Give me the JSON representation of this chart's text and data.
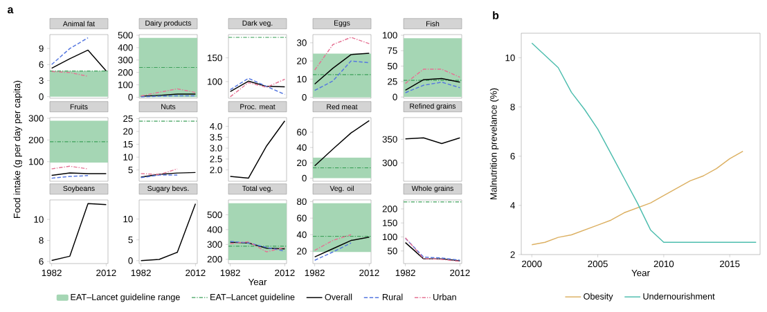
{
  "chart_data": [
    {
      "type": "line",
      "title": "Animal fat",
      "annotations": [
        "a"
      ],
      "categories": [
        null,
        null,
        null,
        null
      ],
      "ylim": [
        -0.3,
        11.6
      ],
      "yticks": [
        0,
        3,
        6,
        9
      ],
      "tick_labels": "y",
      "bands": [
        {
          "axis": "y",
          "from": 0,
          "to": 4.8,
          "color": "#a5d6b4"
        }
      ],
      "ref_lines": [
        {
          "axis": "y",
          "value": 4.8,
          "color": "#3ca05a",
          "line_style": "dashdot"
        }
      ],
      "series": [
        {
          "color": "#000000",
          "line_style": "solid",
          "values": [
            5.3,
            7.1,
            8.7,
            4.8
          ]
        },
        {
          "color": "#5577e0",
          "line_style": "dashed",
          "values": [
            6.0,
            9.0,
            11.0,
            null
          ]
        },
        {
          "color": "#e57394",
          "line_style": "dashdot",
          "values": [
            4.7,
            4.5,
            3.8,
            null
          ]
        }
      ]
    },
    {
      "type": "line",
      "title": "Dairy products",
      "categories": [
        null,
        null,
        null,
        null
      ],
      "ylim": [
        -8,
        505
      ],
      "yticks": [
        0,
        100,
        200,
        300,
        400,
        500
      ],
      "tick_labels": "y",
      "bands": [
        {
          "axis": "y",
          "from": 0,
          "to": 478,
          "color": "#a5d6b4"
        }
      ],
      "ref_lines": [
        {
          "axis": "y",
          "value": 240,
          "color": "#3ca05a",
          "line_style": "dashdot"
        }
      ],
      "series": [
        {
          "color": "#000000",
          "line_style": "solid",
          "values": [
            8,
            15,
            25,
            25
          ]
        },
        {
          "color": "#5577e0",
          "line_style": "dashed",
          "values": [
            3,
            8,
            12,
            12
          ]
        },
        {
          "color": "#e57394",
          "line_style": "dashdot",
          "values": [
            10,
            40,
            68,
            38
          ]
        }
      ]
    },
    {
      "type": "line",
      "title": "Dark veg.",
      "categories": [
        null,
        null,
        null,
        null
      ],
      "ylim": [
        65,
        199
      ],
      "yticks": [
        100,
        150
      ],
      "tick_labels": "y",
      "ref_lines": [
        {
          "axis": "y",
          "value": 193,
          "color": "#3ca05a",
          "line_style": "dashdot"
        }
      ],
      "series": [
        {
          "color": "#000000",
          "line_style": "solid",
          "values": [
            79,
            101,
            90,
            89
          ]
        },
        {
          "color": "#5577e0",
          "line_style": "dashed",
          "values": [
            83,
            107,
            90,
            73
          ]
        },
        {
          "color": "#e57394",
          "line_style": "dashdot",
          "values": [
            68,
            98,
            88,
            105
          ]
        }
      ]
    },
    {
      "type": "line",
      "title": "Eggs",
      "categories": [
        null,
        null,
        null,
        null
      ],
      "ylim": [
        -0.5,
        34.5
      ],
      "yticks": [
        0,
        10,
        20,
        30
      ],
      "tick_labels": "y",
      "bands": [
        {
          "axis": "y",
          "from": 0,
          "to": 24,
          "color": "#a5d6b4"
        }
      ],
      "ref_lines": [
        {
          "axis": "y",
          "value": 12.5,
          "color": "#3ca05a",
          "line_style": "dashdot"
        }
      ],
      "series": [
        {
          "color": "#000000",
          "line_style": "solid",
          "values": [
            7.3,
            16,
            23.5,
            24.2
          ]
        },
        {
          "color": "#5577e0",
          "line_style": "dashed",
          "values": [
            3.8,
            9,
            20,
            19
          ]
        },
        {
          "color": "#e57394",
          "line_style": "dashdot",
          "values": [
            15,
            29,
            33,
            29.5
          ]
        }
      ]
    },
    {
      "type": "line",
      "title": "Fish",
      "categories": [
        null,
        null,
        null,
        null
      ],
      "ylim": [
        -2,
        101
      ],
      "yticks": [
        0,
        25,
        50,
        75,
        100
      ],
      "tick_labels": "y",
      "bands": [
        {
          "axis": "y",
          "from": 0,
          "to": 95,
          "color": "#a5d6b4"
        }
      ],
      "ref_lines": [
        {
          "axis": "y",
          "value": 27,
          "color": "#3ca05a",
          "line_style": "dashdot"
        }
      ],
      "series": [
        {
          "color": "#000000",
          "line_style": "solid",
          "values": [
            11,
            28,
            30,
            24
          ]
        },
        {
          "color": "#5577e0",
          "line_style": "dashed",
          "values": [
            7,
            19,
            24,
            15
          ]
        },
        {
          "color": "#e57394",
          "line_style": "dashdot",
          "values": [
            22,
            45,
            45,
            32
          ]
        }
      ]
    },
    {
      "type": "line",
      "title": "Fruits",
      "ylabel": "Food intake (g per day per capita)",
      "categories": [
        null,
        null,
        null,
        null
      ],
      "ylim": [
        10,
        303
      ],
      "yticks": [
        100,
        200,
        300
      ],
      "tick_labels": "y",
      "bands": [
        {
          "axis": "y",
          "from": 96,
          "to": 289,
          "color": "#a5d6b4"
        }
      ],
      "ref_lines": [
        {
          "axis": "y",
          "value": 192,
          "color": "#3ca05a",
          "line_style": "dashdot"
        }
      ],
      "series": [
        {
          "color": "#000000",
          "line_style": "solid",
          "values": [
            37,
            48,
            45,
            45
          ]
        },
        {
          "color": "#5577e0",
          "line_style": "dashed",
          "values": [
            24,
            32,
            36,
            null
          ]
        },
        {
          "color": "#e57394",
          "line_style": "dashdot",
          "values": [
            67,
            79,
            67,
            null
          ]
        }
      ]
    },
    {
      "type": "line",
      "title": "Nuts",
      "categories": [
        null,
        null,
        null,
        null
      ],
      "ylim": [
        0.6,
        25.4
      ],
      "yticks": [
        5,
        10,
        15,
        20,
        25
      ],
      "tick_labels": "y",
      "ref_lines": [
        {
          "axis": "y",
          "value": 24,
          "color": "#3ca05a",
          "line_style": "dashdot"
        }
      ],
      "series": [
        {
          "color": "#000000",
          "line_style": "solid",
          "values": [
            2.2,
            3.3,
            3.8,
            4.0
          ]
        },
        {
          "color": "#5577e0",
          "line_style": "dashed",
          "values": [
            2.0,
            3.0,
            3.0,
            null
          ]
        },
        {
          "color": "#e57394",
          "line_style": "dashdot",
          "values": [
            3.6,
            3.2,
            5.4,
            null
          ]
        }
      ]
    },
    {
      "type": "line",
      "title": "Proc. meat",
      "categories": [
        null,
        null,
        null,
        null
      ],
      "ylim": [
        1.48,
        4.4
      ],
      "yticks": [
        {
          "value": 2,
          "label": "2.0"
        },
        2.5,
        {
          "value": 3,
          "label": "3.0"
        },
        3.5,
        {
          "value": 4,
          "label": "4.0"
        }
      ],
      "tick_labels": "y",
      "series": [
        {
          "color": "#000000",
          "line_style": "solid",
          "values": [
            1.7,
            1.62,
            3.1,
            4.25
          ]
        }
      ]
    },
    {
      "type": "line",
      "title": "Red meat",
      "categories": [
        null,
        null,
        null,
        null
      ],
      "ylim": [
        -4,
        79
      ],
      "yticks": [
        0,
        20,
        40,
        60
      ],
      "tick_labels": "y",
      "bands": [
        {
          "axis": "y",
          "from": 0,
          "to": 27,
          "color": "#a5d6b4"
        }
      ],
      "ref_lines": [
        {
          "axis": "y",
          "value": 13.5,
          "color": "#3ca05a",
          "line_style": "dashdot"
        }
      ],
      "series": [
        {
          "color": "#000000",
          "line_style": "solid",
          "values": [
            16,
            38,
            59,
            75
          ]
        }
      ]
    },
    {
      "type": "line",
      "title": "Refined grains",
      "categories": [
        null,
        null,
        null,
        null
      ],
      "ylim": [
        261,
        396
      ],
      "yticks": [
        300,
        350
      ],
      "tick_labels": "y",
      "series": [
        {
          "color": "#000000",
          "line_style": "solid",
          "values": [
            351,
            353,
            341,
            353
          ]
        }
      ]
    },
    {
      "type": "line",
      "title": "Soybeans",
      "x": [
        1982,
        1992,
        2002,
        2012
      ],
      "xlim": [
        1981,
        2013
      ],
      "ylim": [
        5.8,
        11.85
      ],
      "yticks": [
        6,
        8,
        10
      ],
      "xticks": [
        1982,
        2012
      ],
      "series": [
        {
          "color": "#000000",
          "line_style": "solid",
          "values": [
            6.1,
            6.5,
            11.5,
            11.4
          ]
        }
      ]
    },
    {
      "type": "line",
      "title": "Sugary bevs.",
      "x": [
        1982,
        1992,
        2002,
        2012
      ],
      "xlim": [
        1981,
        2013
      ],
      "ylim": [
        -0.7,
        14.6
      ],
      "yticks": [
        0,
        5,
        10
      ],
      "xticks": [
        1982,
        2012
      ],
      "series": [
        {
          "color": "#000000",
          "line_style": "solid",
          "values": [
            0,
            0.3,
            2.0,
            13.7
          ]
        }
      ]
    },
    {
      "type": "line",
      "title": "Total veg.",
      "xlabel": "Year",
      "legend": "bottom",
      "x": [
        1982,
        1992,
        2002,
        2012
      ],
      "xlim": [
        1981,
        2013
      ],
      "ylim": [
        171,
        600
      ],
      "yticks": [
        200,
        300,
        400,
        500
      ],
      "xticks": [
        1982,
        2012
      ],
      "bands": [
        {
          "axis": "y",
          "from": 194,
          "to": 578,
          "color": "#a5d6b4",
          "label": "EAT–Lancet guideline range"
        }
      ],
      "ref_lines": [
        {
          "axis": "y",
          "value": 288,
          "color": "#3ca05a",
          "line_style": "dashdot",
          "label": "EAT–Lancet guideline"
        }
      ],
      "series": [
        {
          "name": "Overall",
          "color": "#000000",
          "line_style": "solid",
          "values": [
            315,
            310,
            275,
            270
          ]
        },
        {
          "name": "Rural",
          "color": "#5577e0",
          "line_style": "dashed",
          "values": [
            320,
            310,
            280,
            255
          ]
        },
        {
          "name": "Urban",
          "color": "#e57394",
          "line_style": "dashdot",
          "values": [
            305,
            318,
            250,
            280
          ]
        }
      ]
    },
    {
      "type": "line",
      "title": "Veg. oil",
      "x": [
        1982,
        1992,
        2002,
        2012
      ],
      "xlim": [
        1981,
        2013
      ],
      "ylim": [
        5,
        82
      ],
      "yticks": [
        20,
        40,
        60,
        80
      ],
      "xticks": [
        1982,
        2012
      ],
      "bands": [
        {
          "axis": "y",
          "from": 19,
          "to": 78,
          "color": "#a5d6b4"
        }
      ],
      "ref_lines": [
        {
          "axis": "y",
          "value": 38,
          "color": "#3ca05a",
          "line_style": "dashdot"
        }
      ],
      "series": [
        {
          "color": "#000000",
          "line_style": "solid",
          "values": [
            13,
            23,
            33,
            37
          ]
        },
        {
          "color": "#5577e0",
          "line_style": "dashed",
          "x": [
            1982,
            1992,
            2002
          ],
          "values": [
            9,
            19,
            30
          ]
        },
        {
          "color": "#e57394",
          "line_style": "dashdot",
          "x": [
            1982,
            1992,
            2002
          ],
          "values": [
            21,
            33,
            40
          ]
        }
      ]
    },
    {
      "type": "line",
      "title": "Whole grains",
      "x": [
        1982,
        1992,
        2002,
        2012
      ],
      "xlim": [
        1981,
        2013
      ],
      "ylim": [
        5,
        232
      ],
      "yticks": [
        50,
        100,
        150,
        200
      ],
      "xticks": [
        1982,
        2012
      ],
      "ref_lines": [
        {
          "axis": "y",
          "value": 225,
          "color": "#3ca05a",
          "line_style": "dashdot"
        }
      ],
      "series": [
        {
          "color": "#000000",
          "line_style": "solid",
          "values": [
            80,
            22,
            22,
            15
          ]
        },
        {
          "color": "#5577e0",
          "line_style": "dashed",
          "values": [
            95,
            28,
            25,
            17
          ]
        },
        {
          "color": "#e57394",
          "line_style": "dashdot",
          "values": [
            97,
            23,
            20,
            13
          ]
        }
      ]
    },
    {
      "type": "line",
      "annotations": [
        "b"
      ],
      "xlabel": "Year",
      "ylabel": "Malnutrition prevelance (%)",
      "legend": "bottom",
      "x": [
        2000,
        2001,
        2002,
        2003,
        2004,
        2005,
        2006,
        2007,
        2008,
        2009,
        2010,
        2011,
        2012,
        2013,
        2014,
        2015,
        2016,
        2017
      ],
      "xlim": [
        1999.2,
        2017.3
      ],
      "ylim": [
        2,
        11
      ],
      "xticks": [
        2000,
        2005,
        2010,
        2015
      ],
      "yticks": [
        2,
        4,
        6,
        8,
        10
      ],
      "series": [
        {
          "name": "Obesity",
          "color": "#dcb062",
          "line_style": "solid",
          "values": [
            2.4,
            2.5,
            2.7,
            2.8,
            3.0,
            3.2,
            3.4,
            3.7,
            3.9,
            4.1,
            4.4,
            4.7,
            5.0,
            5.2,
            5.5,
            5.9,
            6.2,
            null
          ]
        },
        {
          "name": "Undernourishment",
          "color": "#4dbdae",
          "line_style": "solid",
          "values": [
            10.6,
            10.1,
            9.6,
            8.6,
            7.9,
            7.1,
            6.1,
            5.1,
            4.1,
            3.0,
            2.5,
            2.5,
            2.5,
            2.5,
            2.5,
            2.5,
            2.5,
            2.5
          ]
        }
      ]
    }
  ]
}
